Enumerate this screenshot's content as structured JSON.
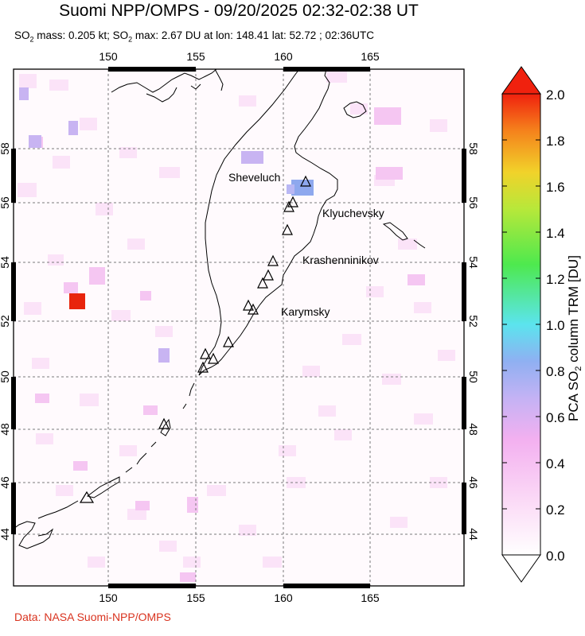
{
  "title": "Suomi NPP/OMPS - 09/20/2025 02:32-02:38 UT",
  "subtitle": {
    "so2_mass_label": "SO",
    "mass_text": " mass: 0.205 kt; SO",
    "max_text": " max: 2.67 DU at lon: 148.41 lat: 52.72 ; 02:36UTC"
  },
  "credit": "Data: NASA Suomi-NPP/OMPS",
  "map": {
    "lon_ticks": [
      "150",
      "155",
      "160",
      "165"
    ],
    "lat_ticks": [
      "44",
      "46",
      "48",
      "50",
      "52",
      "54",
      "56",
      "58"
    ],
    "volcanoes": {
      "sheveluch": "Sheveluch",
      "klyuchevsky": "Klyuchevsky",
      "krasheninnikov": "Krashenninikov",
      "karymsky": "Karymsky"
    },
    "max_so2_color": "#e8240c",
    "land_outline_color": "#000000",
    "grid_color": "#777777"
  },
  "colorbar": {
    "title": "PCA SO",
    "title_suffix": " column TRM [DU]",
    "ticks": [
      "0.0",
      "0.2",
      "0.4",
      "0.6",
      "0.8",
      "1.0",
      "1.2",
      "1.4",
      "1.6",
      "1.8",
      "2.0"
    ],
    "colors": [
      "#ffffff",
      "#f9c5f1",
      "#a9a9f5",
      "#58e8ef",
      "#4ce04c",
      "#e7e52a",
      "#f48b1c",
      "#f01b0e"
    ]
  }
}
